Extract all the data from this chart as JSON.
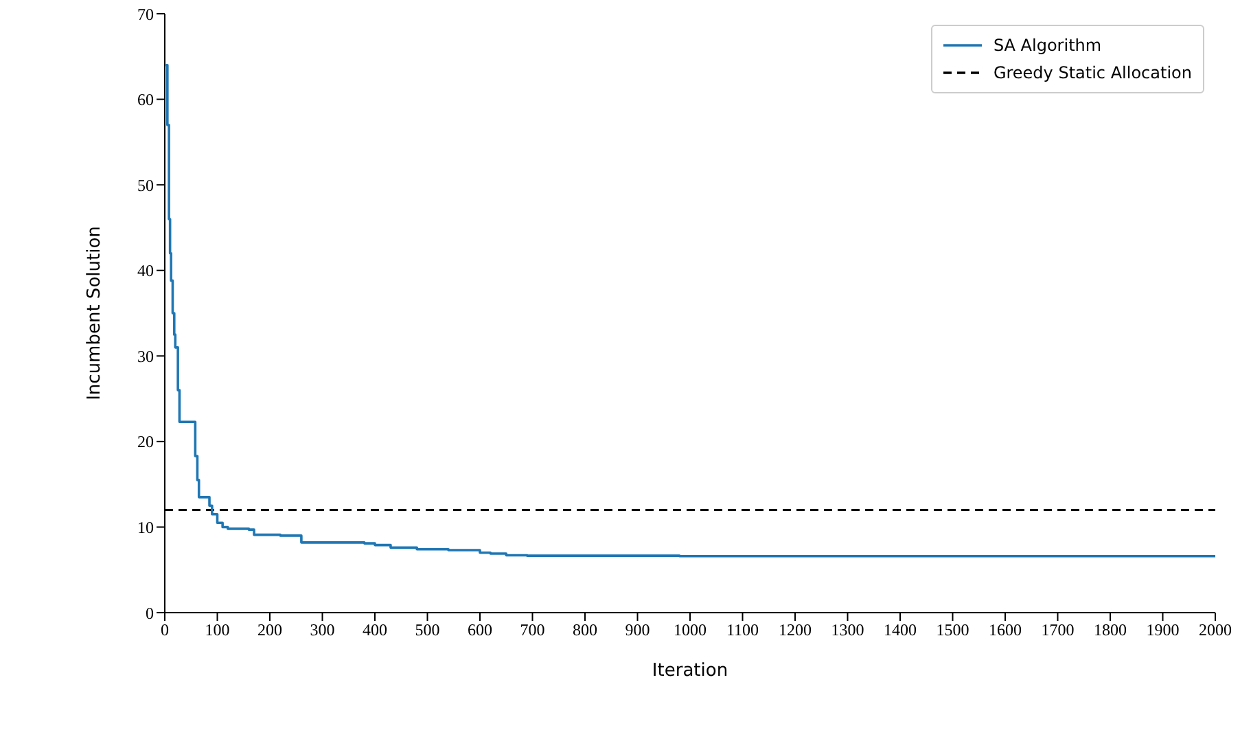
{
  "chart_data": {
    "type": "step",
    "xlabel": "Iteration",
    "ylabel": "Incumbent Solution",
    "xlim": [
      0,
      2000
    ],
    "xticks": [
      0,
      100,
      200,
      300,
      400,
      500,
      600,
      700,
      800,
      900,
      1000,
      1100,
      1200,
      1300,
      1400,
      1500,
      1600,
      1700,
      1800,
      1900,
      2000
    ],
    "ylim": [
      0,
      70
    ],
    "yticks": [
      0,
      10,
      20,
      30,
      40,
      50,
      60,
      70
    ],
    "series": [
      {
        "name": "SA Algorithm",
        "color": "#1f77b4",
        "x": [
          2,
          5,
          8,
          10,
          12,
          15,
          18,
          20,
          25,
          28,
          55,
          58,
          62,
          65,
          80,
          85,
          90,
          100,
          110,
          120,
          160,
          170,
          220,
          260,
          360,
          380,
          400,
          430,
          480,
          540,
          600,
          620,
          650,
          690,
          980,
          2000
        ],
        "values": [
          64,
          57,
          46,
          42,
          38.8,
          35,
          32.5,
          31,
          26,
          22.3,
          22.3,
          18.3,
          15.5,
          13.5,
          13.5,
          12.5,
          11.5,
          10.5,
          10,
          9.8,
          9.7,
          9.1,
          9,
          8.2,
          8.2,
          8.1,
          7.9,
          7.6,
          7.4,
          7.3,
          7,
          6.9,
          6.7,
          6.65,
          6.6,
          6.6
        ]
      }
    ],
    "ref_lines": [
      {
        "axis": "y",
        "value": 12,
        "label": "Greedy Static Allocation",
        "color": "#000000",
        "line_style": "dashed"
      }
    ],
    "legend": "top right",
    "line_style": "solid",
    "marker": "none",
    "grid": false
  }
}
